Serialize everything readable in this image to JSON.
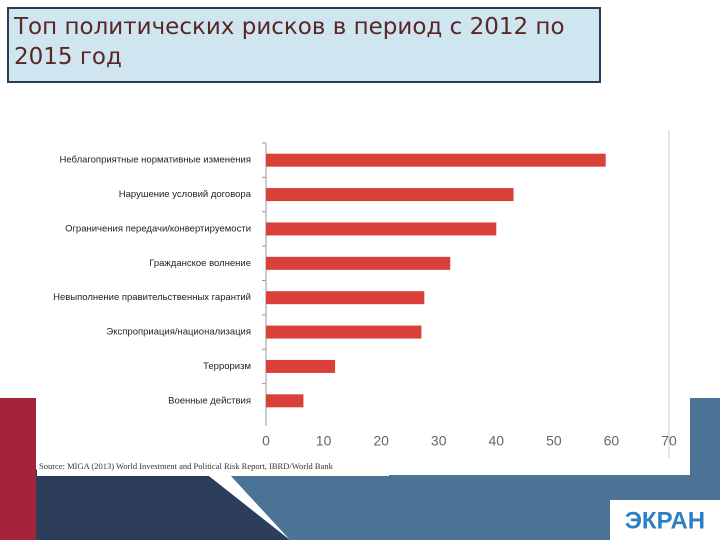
{
  "chart_data": {
    "type": "bar",
    "orientation": "horizontal",
    "title": "Топ политических рисков в период с 2012 по 2015 год",
    "categories": [
      "Неблагоприятные нормативные изменения",
      "Нарушение условий договора",
      "Ограничения передачи/конвертируемости",
      "Гражданское волнение",
      "Невыполнение правительственных гарантий",
      "Экспроприация/национализация",
      "Терроризм",
      "Военные действия"
    ],
    "values": [
      59,
      43,
      40,
      32,
      27.5,
      27,
      12,
      6.5
    ],
    "color": "#d9403a",
    "xlim": [
      0,
      70
    ],
    "xticks": [
      0,
      10,
      20,
      30,
      40,
      50,
      60,
      70
    ],
    "grid": false,
    "source": "Source: MIGA (2013) World Investment and Political Risk Report, IBRD/World Bank",
    "logo": "ЭКРАН"
  }
}
